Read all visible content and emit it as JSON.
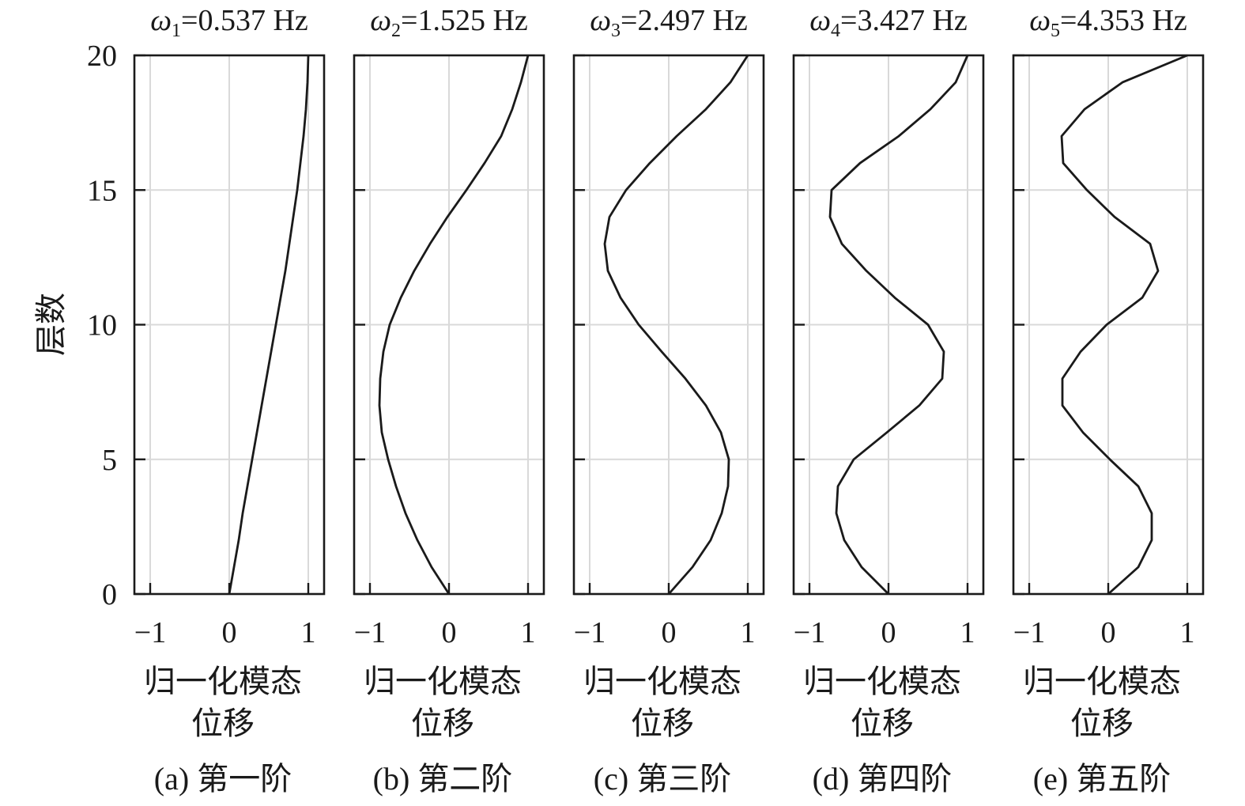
{
  "chart_data": {
    "type": "line",
    "ylabel": "层数",
    "ylim": [
      0,
      20
    ],
    "yticks": [
      "0",
      "5",
      "10",
      "15",
      "20"
    ],
    "xlim": [
      -1.2,
      1.2
    ],
    "xticks": [
      "−1",
      "0",
      "1"
    ],
    "xticks_values": [
      -1,
      0,
      1
    ],
    "grid": true,
    "y": [
      0,
      1,
      2,
      3,
      4,
      5,
      6,
      7,
      8,
      9,
      10,
      11,
      12,
      13,
      14,
      15,
      16,
      17,
      18,
      19,
      20
    ],
    "panels": [
      {
        "title_symbol": "ω",
        "title_sub": "1",
        "title_rest": "=0.537 Hz",
        "xlabel_line1": "归一化模态",
        "xlabel_line2": "位移",
        "caption": "(a) 第一阶",
        "x": [
          0,
          0.06,
          0.12,
          0.17,
          0.23,
          0.29,
          0.35,
          0.41,
          0.47,
          0.53,
          0.59,
          0.65,
          0.71,
          0.76,
          0.81,
          0.86,
          0.9,
          0.94,
          0.97,
          0.99,
          1.0
        ]
      },
      {
        "title_symbol": "ω",
        "title_sub": "2",
        "title_rest": "=1.525 Hz",
        "xlabel_line1": "归一化模态",
        "xlabel_line2": "位移",
        "caption": "(b) 第二阶",
        "x": [
          0,
          -0.22,
          -0.4,
          -0.55,
          -0.67,
          -0.77,
          -0.85,
          -0.88,
          -0.87,
          -0.83,
          -0.75,
          -0.61,
          -0.44,
          -0.24,
          -0.02,
          0.22,
          0.45,
          0.66,
          0.8,
          0.91,
          1.0
        ]
      },
      {
        "title_symbol": "ω",
        "title_sub": "3",
        "title_rest": "=2.497 Hz",
        "xlabel_line1": "归一化模态",
        "xlabel_line2": "位移",
        "caption": "(c) 第三阶",
        "x": [
          0,
          0.3,
          0.53,
          0.67,
          0.75,
          0.76,
          0.66,
          0.47,
          0.21,
          -0.09,
          -0.38,
          -0.61,
          -0.77,
          -0.81,
          -0.75,
          -0.54,
          -0.24,
          0.1,
          0.47,
          0.78,
          1.0
        ]
      },
      {
        "title_symbol": "ω",
        "title_sub": "4",
        "title_rest": "=3.427 Hz",
        "xlabel_line1": "归一化模态",
        "xlabel_line2": "位移",
        "caption": "(d) 第四阶",
        "x": [
          0,
          -0.34,
          -0.56,
          -0.66,
          -0.64,
          -0.44,
          -0.02,
          0.39,
          0.68,
          0.7,
          0.5,
          0.08,
          -0.28,
          -0.59,
          -0.74,
          -0.72,
          -0.36,
          0.13,
          0.53,
          0.85,
          1.0
        ]
      },
      {
        "title_symbol": "ω",
        "title_sub": "5",
        "title_rest": "=4.353 Hz",
        "xlabel_line1": "归一化模态",
        "xlabel_line2": "位移",
        "caption": "(e) 第五阶",
        "x": [
          0,
          0.38,
          0.55,
          0.55,
          0.38,
          0.02,
          -0.32,
          -0.58,
          -0.58,
          -0.35,
          -0.02,
          0.43,
          0.63,
          0.53,
          0.08,
          -0.27,
          -0.57,
          -0.59,
          -0.3,
          0.18,
          1.0
        ]
      }
    ]
  }
}
